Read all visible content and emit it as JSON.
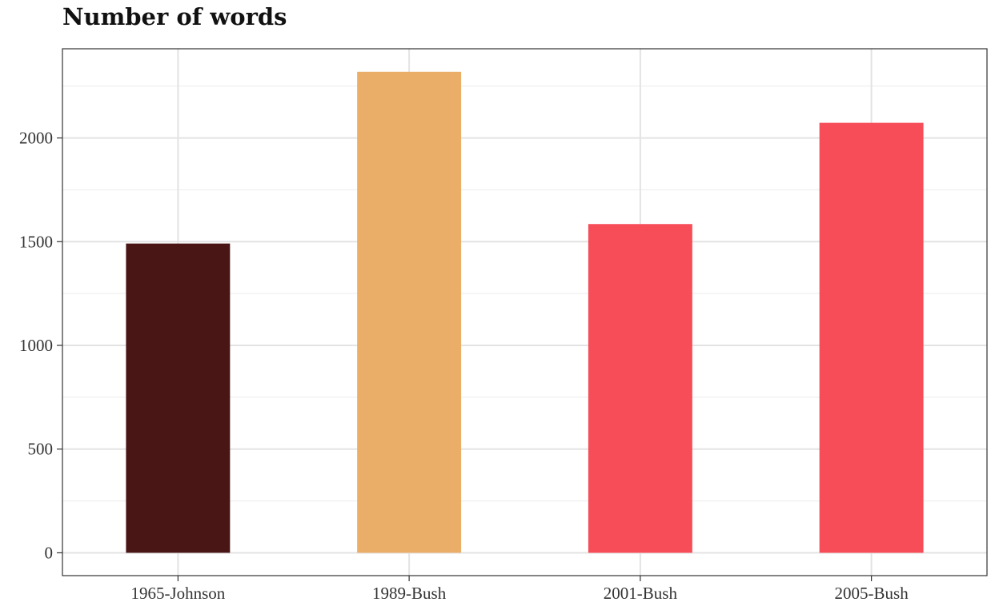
{
  "chart_data": {
    "type": "bar",
    "title": "Number of words",
    "xlabel": "",
    "ylabel": "",
    "categories": [
      "1965-Johnson",
      "1989-Bush",
      "2001-Bush",
      "2005-Bush"
    ],
    "values": [
      1491,
      2319,
      1585,
      2073
    ],
    "colors": [
      "#4a1515",
      "#ebae69",
      "#f74d58",
      "#f74d58"
    ],
    "ylim": [
      -110,
      2430
    ],
    "yticks": [
      0,
      500,
      1000,
      1500,
      2000
    ],
    "ytick_labels": [
      "0",
      "500",
      "1000",
      "1500",
      "2000"
    ],
    "grid": true,
    "legend": "none"
  }
}
